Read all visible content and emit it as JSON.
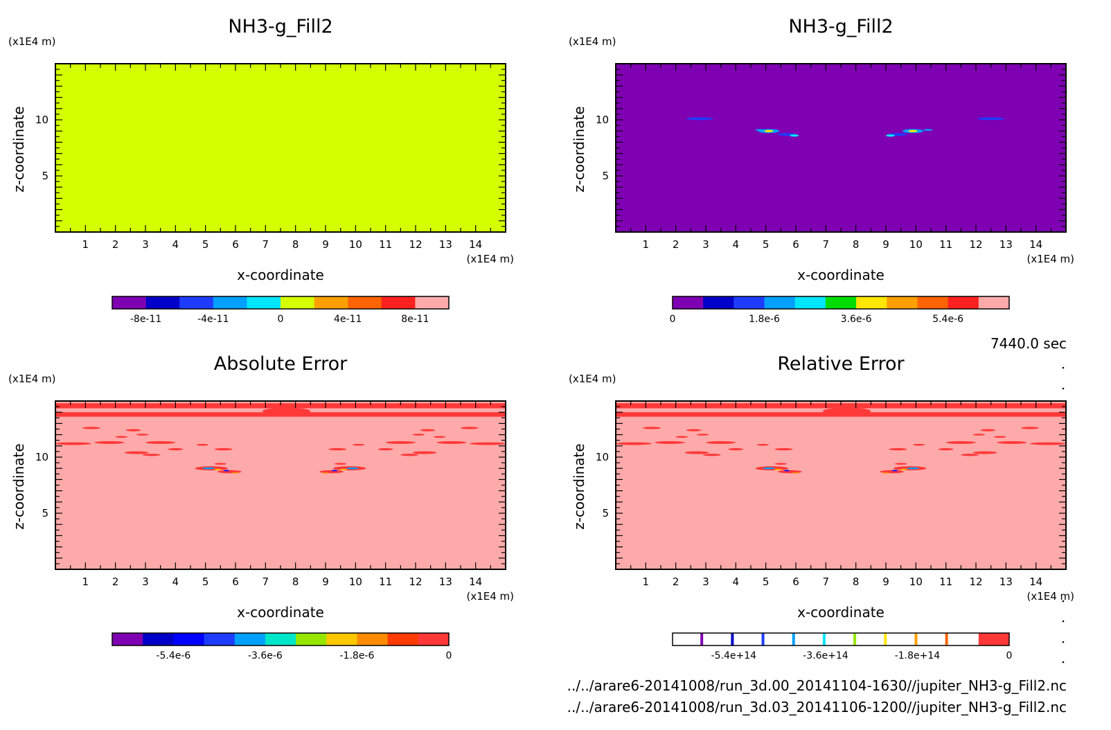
{
  "timestamp": "7440.0 sec",
  "files": [
    "../../arare6-20141008/run_3d.00_20141104-1630//jupiter_NH3-g_Fill2.nc",
    "../../arare6-20141008/run_3d.03_20141106-1200//jupiter_NH3-g_Fill2.nc"
  ],
  "colors": {
    "plot1_fill": "#d4ff00",
    "plot2_fill": "#7f00b2",
    "error_fill": "#ffaaaa",
    "error_band": "#ff3838"
  },
  "chart_data": [
    {
      "type": "heatmap",
      "title": "NH3-g_Fill2",
      "xlabel": "x-coordinate",
      "ylabel": "z-coordinate",
      "x_unit": "(x1E4 m)",
      "y_unit": "(x1E4 m)",
      "xlim": [
        0,
        15
      ],
      "ylim": [
        0,
        15
      ],
      "xticks": [
        "1",
        "2",
        "3",
        "4",
        "5",
        "6",
        "7",
        "8",
        "9",
        "10",
        "11",
        "12",
        "13",
        "14"
      ],
      "yticks": [
        "5",
        "10"
      ],
      "field": "uniform",
      "colorbar": {
        "colors": [
          "#7f00b2",
          "#0000c8",
          "#1e3cff",
          "#00a0ff",
          "#00e6ff",
          "#d4ff00",
          "#ffa000",
          "#ff6400",
          "#ff2020",
          "#ffaaaa"
        ],
        "ticks": [
          {
            "pos": 1,
            "label": "-8e-11"
          },
          {
            "pos": 3,
            "label": "-4e-11"
          },
          {
            "pos": 5,
            "label": "0"
          },
          {
            "pos": 7,
            "label": "4e-11"
          },
          {
            "pos": 9,
            "label": "8e-11"
          }
        ]
      }
    },
    {
      "type": "heatmap",
      "title": "NH3-g_Fill2",
      "xlabel": "x-coordinate",
      "ylabel": "z-coordinate",
      "x_unit": "(x1E4 m)",
      "y_unit": "(x1E4 m)",
      "xlim": [
        0,
        15
      ],
      "ylim": [
        0,
        15
      ],
      "xticks": [
        "1",
        "2",
        "3",
        "4",
        "5",
        "6",
        "7",
        "8",
        "9",
        "10",
        "11",
        "12",
        "13",
        "14"
      ],
      "yticks": [
        "5",
        "10"
      ],
      "field": "sparse_blobs",
      "colorbar": {
        "colors": [
          "#7f00b2",
          "#0000c8",
          "#1e3cff",
          "#00a0ff",
          "#00e6ff",
          "#00dc00",
          "#ffe600",
          "#ffa000",
          "#ff6400",
          "#ff2020",
          "#ffaaaa"
        ],
        "ticks": [
          {
            "pos": 0,
            "label": "0"
          },
          {
            "pos": 3,
            "label": "1.8e-6"
          },
          {
            "pos": 6,
            "label": "3.6e-6"
          },
          {
            "pos": 9,
            "label": "5.4e-6"
          }
        ]
      }
    },
    {
      "type": "heatmap",
      "title": "Absolute Error",
      "xlabel": "x-coordinate",
      "ylabel": "z-coordinate",
      "x_unit": "(x1E4 m)",
      "y_unit": "(x1E4 m)",
      "xlim": [
        0,
        15
      ],
      "ylim": [
        0,
        15
      ],
      "xticks": [
        "1",
        "2",
        "3",
        "4",
        "5",
        "6",
        "7",
        "8",
        "9",
        "10",
        "11",
        "12",
        "13",
        "14"
      ],
      "yticks": [
        "5",
        "10"
      ],
      "field": "error",
      "colorbar": {
        "colors": [
          "#7f00b2",
          "#0000c8",
          "#0000ff",
          "#1e3cff",
          "#00a0ff",
          "#00e6c8",
          "#96e600",
          "#ffc800",
          "#ff8c00",
          "#ff3c00",
          "#ff3838"
        ],
        "ticks": [
          {
            "pos": 2,
            "label": "-5.4e-6"
          },
          {
            "pos": 5,
            "label": "-3.6e-6"
          },
          {
            "pos": 8,
            "label": "-1.8e-6"
          },
          {
            "pos": 11,
            "label": "0"
          }
        ]
      }
    },
    {
      "type": "heatmap",
      "title": "Relative Error",
      "xlabel": "x-coordinate",
      "ylabel": "z-coordinate",
      "x_unit": "(x1E4 m)",
      "y_unit": "(x1E4 m)",
      "xlim": [
        0,
        15
      ],
      "ylim": [
        0,
        15
      ],
      "xticks": [
        "1",
        "2",
        "3",
        "4",
        "5",
        "6",
        "7",
        "8",
        "9",
        "10",
        "11",
        "12",
        "13",
        "14"
      ],
      "yticks": [
        "5",
        "10"
      ],
      "field": "error",
      "colorbar": {
        "style": "thin_lines",
        "line_colors": [
          "#7f00b2",
          "#0000c8",
          "#1e3cff",
          "#00a0ff",
          "#00e6ff",
          "#96e600",
          "#ffe600",
          "#ffa000",
          "#ff6400",
          "#ff3838"
        ],
        "ticks": [
          {
            "pos": 2,
            "label": "-5.4e+14"
          },
          {
            "pos": 5,
            "label": "-3.6e+14"
          },
          {
            "pos": 8,
            "label": "-1.8e+14"
          },
          {
            "pos": 11,
            "label": "0"
          }
        ]
      }
    }
  ]
}
